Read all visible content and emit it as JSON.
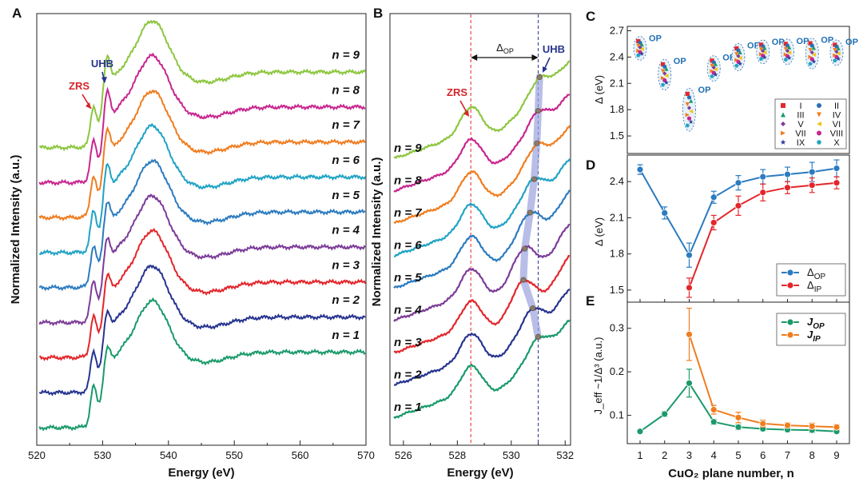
{
  "panels": {
    "A": "A",
    "B": "B",
    "C": "C",
    "D": "D",
    "E": "E"
  },
  "chart_data": [
    {
      "panel": "A",
      "type": "line",
      "xlabel": "Energy (eV)",
      "ylabel": "Normalized Intensity (a.u.)",
      "xlim": [
        520,
        570
      ],
      "xticks": [
        "520",
        "530",
        "540",
        "550",
        "560",
        "570"
      ],
      "annotations": [
        "ZRS",
        "UHB"
      ],
      "series": [
        {
          "name": "n = 1",
          "color": "#1a9a6a",
          "offset": 0
        },
        {
          "name": "n = 2",
          "color": "#27348f",
          "offset": 1
        },
        {
          "name": "n = 3",
          "color": "#e3262b",
          "offset": 2
        },
        {
          "name": "n = 4",
          "color": "#7c3c98",
          "offset": 3
        },
        {
          "name": "n = 5",
          "color": "#2b7bbf",
          "offset": 4
        },
        {
          "name": "n = 6",
          "color": "#20a3c4",
          "offset": 5
        },
        {
          "name": "n = 7",
          "color": "#ef7d1f",
          "offset": 6
        },
        {
          "name": "n = 8",
          "color": "#c8268f",
          "offset": 7
        },
        {
          "name": "n = 9",
          "color": "#8dc63f",
          "offset": 8
        }
      ]
    },
    {
      "panel": "B",
      "type": "line",
      "xlabel": "Energy (eV)",
      "ylabel": "Normalized Intensity (a.u.)",
      "xlim": [
        525.5,
        532.2
      ],
      "xticks": [
        "526",
        "528",
        "530",
        "532"
      ],
      "annotations": [
        "ZRS",
        "UHB",
        "Δ",
        "OP"
      ],
      "zrs_line_x": 528.5,
      "uhb_line_x": 531.0,
      "uhb_peaks": [
        {
          "n": 1,
          "x": 531.0
        },
        {
          "n": 2,
          "x": 530.8
        },
        {
          "n": 3,
          "x": 530.45
        },
        {
          "n": 4,
          "x": 530.5
        },
        {
          "name": "n=5",
          "n": 5,
          "x": 530.7
        },
        {
          "n": 6,
          "x": 530.85
        },
        {
          "n": 7,
          "x": 530.95
        },
        {
          "n": 8,
          "x": 531.0
        },
        {
          "n": 9,
          "x": 531.05
        }
      ]
    },
    {
      "panel": "C",
      "type": "scatter",
      "xlabel": "",
      "ylabel": "Δ (eV)",
      "ylim": [
        1.3,
        2.75
      ],
      "yticks": [
        "1.5",
        "1.8",
        "2.1",
        "2.4",
        "2.7"
      ],
      "group_label": "OP",
      "groups": [
        {
          "n": 1,
          "center": 2.5,
          "spread": 0.09
        },
        {
          "n": 2,
          "center": 2.2,
          "spread": 0.13
        },
        {
          "n": 3,
          "center": 1.8,
          "spread": 0.2
        },
        {
          "n": 4,
          "center": 2.27,
          "spread": 0.1
        },
        {
          "n": 5,
          "center": 2.4,
          "spread": 0.11
        },
        {
          "n": 6,
          "center": 2.46,
          "spread": 0.09
        },
        {
          "n": 7,
          "center": 2.46,
          "spread": 0.1
        },
        {
          "n": 8,
          "center": 2.44,
          "spread": 0.13
        },
        {
          "n": 9,
          "center": 2.45,
          "spread": 0.1
        }
      ],
      "legend": [
        {
          "label": "I",
          "marker": "square",
          "color": "#e3262b"
        },
        {
          "label": "II",
          "marker": "circle",
          "color": "#2b6fb5"
        },
        {
          "label": "III",
          "marker": "triangle-up",
          "color": "#1a9a6a"
        },
        {
          "label": "IV",
          "marker": "triangle-down",
          "color": "#ef7d1f"
        },
        {
          "label": "V",
          "marker": "diamond",
          "color": "#7c3c98"
        },
        {
          "label": "VI",
          "marker": "triangle-left",
          "color": "#f0c419"
        },
        {
          "label": "VII",
          "marker": "triangle-right",
          "color": "#ef7d1f"
        },
        {
          "label": "VIII",
          "marker": "circle",
          "color": "#c8268f"
        },
        {
          "label": "IX",
          "marker": "star",
          "color": "#2b3f9e"
        },
        {
          "label": "X",
          "marker": "hexagon",
          "color": "#20a3c4"
        }
      ]
    },
    {
      "panel": "D",
      "type": "line",
      "xlabel": "",
      "ylabel": "Δ (eV)",
      "ylim": [
        1.4,
        2.62
      ],
      "yticks": [
        "1.5",
        "1.8",
        "2.1",
        "2.4"
      ],
      "x": [
        1,
        2,
        3,
        4,
        5,
        6,
        7,
        8,
        9
      ],
      "series": [
        {
          "name": "Δ",
          "sub": "OP",
          "color": "#2b7bbf",
          "x": [
            1,
            2,
            3,
            4,
            5,
            6,
            7,
            8,
            9
          ],
          "values": [
            2.5,
            2.14,
            1.79,
            2.27,
            2.39,
            2.44,
            2.46,
            2.48,
            2.51
          ],
          "errors": [
            0.04,
            0.05,
            0.1,
            0.05,
            0.06,
            0.06,
            0.06,
            0.08,
            0.07
          ]
        },
        {
          "name": "Δ",
          "sub": "IP",
          "color": "#e3262b",
          "x": [
            3,
            4,
            5,
            6,
            7,
            8,
            9
          ],
          "values": [
            1.52,
            2.06,
            2.2,
            2.31,
            2.35,
            2.37,
            2.39
          ],
          "errors": [
            0.08,
            0.06,
            0.08,
            0.07,
            0.05,
            0.06,
            0.05
          ]
        }
      ]
    },
    {
      "panel": "E",
      "type": "line",
      "xlabel": "CuO₂ plane number, n",
      "ylabel": "J_eff ~1/Δ³ (a.u.)",
      "ylim": [
        0.035,
        0.36
      ],
      "yticks": [
        "0.1",
        "0.2",
        "0.3"
      ],
      "xticks": [
        "1",
        "2",
        "3",
        "4",
        "5",
        "6",
        "7",
        "8",
        "9"
      ],
      "series": [
        {
          "name": "J",
          "sub": "OP",
          "color": "#1a9a6a",
          "x": [
            1,
            2,
            3,
            4,
            5,
            6,
            7,
            8,
            9
          ],
          "values": [
            0.063,
            0.103,
            0.174,
            0.085,
            0.073,
            0.069,
            0.067,
            0.066,
            0.063
          ],
          "errors": [
            0.003,
            0.006,
            0.032,
            0.006,
            0.006,
            0.005,
            0.005,
            0.006,
            0.005
          ]
        },
        {
          "name": "J",
          "sub": "IP",
          "color": "#ef7d1f",
          "x": [
            3,
            4,
            5,
            6,
            7,
            8,
            9
          ],
          "values": [
            0.286,
            0.113,
            0.095,
            0.081,
            0.077,
            0.075,
            0.073
          ],
          "errors": [
            0.06,
            0.01,
            0.012,
            0.008,
            0.006,
            0.007,
            0.006
          ]
        }
      ]
    }
  ]
}
